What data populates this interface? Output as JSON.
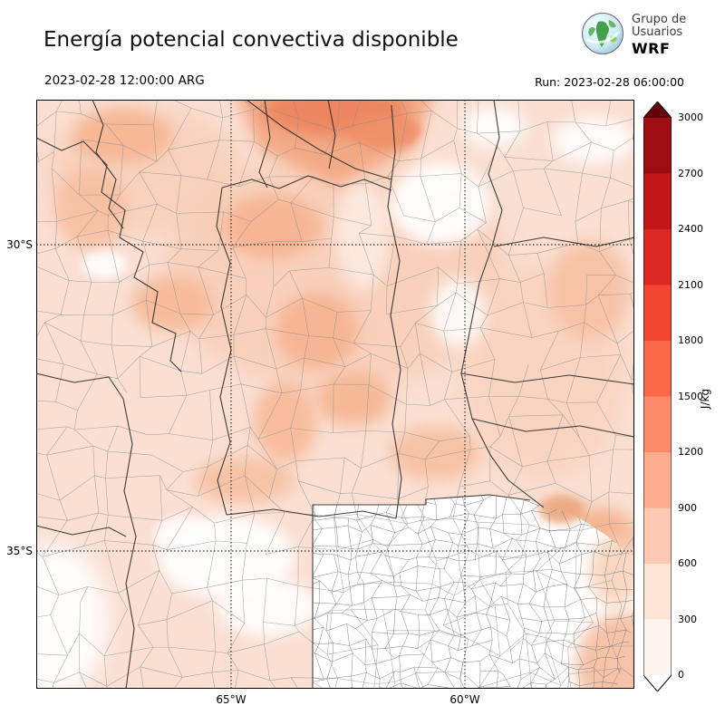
{
  "header": {
    "title": "Energía potencial convectiva disponible",
    "logo": {
      "line1": "Grupo de",
      "line2": "Usuarios",
      "line3": "WRF"
    },
    "valid_time": "2023-02-28 12:00:00 ARG",
    "run_time": "Run: 2023-02-28 06:00:00"
  },
  "axes": {
    "lat_labels": [
      "30°S",
      "35°S"
    ],
    "lon_labels": [
      "65°W",
      "60°W"
    ]
  },
  "colorbar": {
    "unit": "J/kg",
    "ticks_top_to_bottom": [
      "3000",
      "2700",
      "2400",
      "2100",
      "1800",
      "1500",
      "1200",
      "900",
      "600",
      "300",
      "0"
    ],
    "segments_bottom_to_top": [
      "#fff5f0",
      "#fee3d7",
      "#fdc9b3",
      "#fcab8f",
      "#fc8b6b",
      "#fb694a",
      "#f24633",
      "#dc2924",
      "#c2161b",
      "#9c0d14"
    ],
    "over_color": "#67000d",
    "under_color": "#ffffff",
    "outline_color": "#000000"
  },
  "map": {
    "field_name": "CAPE",
    "background_color": "#fadfd2"
  }
}
